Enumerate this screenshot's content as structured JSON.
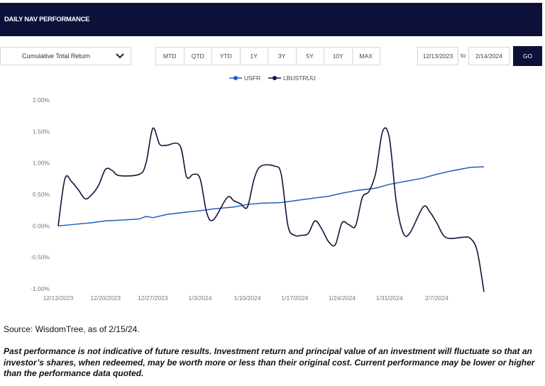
{
  "header": {
    "title": "DAILY NAV PERFORMANCE"
  },
  "controls": {
    "metric_select": "Cumulative Total Return",
    "ranges": [
      "MTD",
      "QTD",
      "YTD",
      "1Y",
      "3Y",
      "5Y",
      "10Y",
      "MAX"
    ],
    "start_date": "12/13/2023",
    "to_label": "to",
    "end_date": "2/14/2024",
    "go_label": "GO"
  },
  "colors": {
    "header_bg": "#0d1038",
    "usfr": "#1f5fbf",
    "lbustruu": "#12133a"
  },
  "chart_data": {
    "type": "line",
    "x_tick_labels": [
      "12/13/2023",
      "12/20/2023",
      "12/27/2023",
      "1/3/2024",
      "1/10/2024",
      "1/17/2024",
      "1/24/2024",
      "1/31/2024",
      "2/7/2024"
    ],
    "y_tick_labels": [
      "2.00%",
      "1.50%",
      "1.00%",
      "0.50%",
      "0.00%",
      "-0.50%",
      "-1.00%"
    ],
    "ylim": [
      -1.0,
      2.0
    ],
    "xlim": [
      "2023-12-13",
      "2024-02-14"
    ],
    "grid": "none",
    "legend_position": "top-center",
    "series": [
      {
        "name": "USFR",
        "x": [
          "2023-12-13",
          "2023-12-15",
          "2023-12-18",
          "2023-12-20",
          "2023-12-22",
          "2023-12-25",
          "2023-12-26",
          "2023-12-27",
          "2023-12-29",
          "2024-01-01",
          "2024-01-03",
          "2024-01-05",
          "2024-01-08",
          "2024-01-10",
          "2024-01-12",
          "2024-01-15",
          "2024-01-17",
          "2024-01-19",
          "2024-01-22",
          "2024-01-24",
          "2024-01-26",
          "2024-01-29",
          "2024-01-31",
          "2024-02-02",
          "2024-02-05",
          "2024-02-07",
          "2024-02-09",
          "2024-02-12",
          "2024-02-14"
        ],
        "values": [
          0.0,
          0.02,
          0.05,
          0.08,
          0.09,
          0.11,
          0.15,
          0.13,
          0.18,
          0.22,
          0.24,
          0.27,
          0.3,
          0.34,
          0.36,
          0.37,
          0.4,
          0.43,
          0.47,
          0.52,
          0.56,
          0.6,
          0.66,
          0.7,
          0.76,
          0.82,
          0.87,
          0.93,
          0.94
        ]
      },
      {
        "name": "LBUSTRUU",
        "x": [
          "2023-12-13",
          "2023-12-14",
          "2023-12-15",
          "2023-12-16",
          "2023-12-17",
          "2023-12-18",
          "2023-12-19",
          "2023-12-20",
          "2023-12-21",
          "2023-12-22",
          "2023-12-25",
          "2023-12-26",
          "2023-12-27",
          "2023-12-28",
          "2023-12-29",
          "2023-12-31",
          "2024-01-01",
          "2024-01-02",
          "2024-01-03",
          "2024-01-04",
          "2024-01-05",
          "2024-01-07",
          "2024-01-08",
          "2024-01-09",
          "2024-01-10",
          "2024-01-11",
          "2024-01-12",
          "2024-01-14",
          "2024-01-15",
          "2024-01-16",
          "2024-01-17",
          "2024-01-18",
          "2024-01-19",
          "2024-01-20",
          "2024-01-21",
          "2024-01-22",
          "2024-01-23",
          "2024-01-24",
          "2024-01-25",
          "2024-01-26",
          "2024-01-27",
          "2024-01-28",
          "2024-01-29",
          "2024-01-30",
          "2024-01-31",
          "2024-02-01",
          "2024-02-02",
          "2024-02-03",
          "2024-02-05",
          "2024-02-06",
          "2024-02-07",
          "2024-02-08",
          "2024-02-09",
          "2024-02-11",
          "2024-02-12",
          "2024-02-13",
          "2024-02-14"
        ],
        "values": [
          0.0,
          0.75,
          0.7,
          0.57,
          0.43,
          0.5,
          0.65,
          0.9,
          0.88,
          0.8,
          0.82,
          1.0,
          1.55,
          1.3,
          1.28,
          1.28,
          0.78,
          0.82,
          0.75,
          0.2,
          0.1,
          0.45,
          0.4,
          0.35,
          0.3,
          0.75,
          0.95,
          0.95,
          0.82,
          0.0,
          -0.15,
          -0.15,
          -0.12,
          0.08,
          -0.05,
          -0.25,
          -0.3,
          0.05,
          0.02,
          0.0,
          0.45,
          0.55,
          0.85,
          1.5,
          1.4,
          0.4,
          -0.1,
          -0.12,
          0.3,
          0.22,
          0.05,
          -0.15,
          -0.2,
          -0.18,
          -0.2,
          -0.4,
          -1.05
        ]
      }
    ]
  },
  "footer": {
    "source": "Source: WisdomTree, as of 2/15/24.",
    "disclaimer": "Past performance is not indicative of future results. Investment return and principal value of an investment will fluctuate so that an investor’s shares, when redeemed, may be worth more or less than their original cost. Current performance may be lower or higher than the performance data quoted."
  }
}
